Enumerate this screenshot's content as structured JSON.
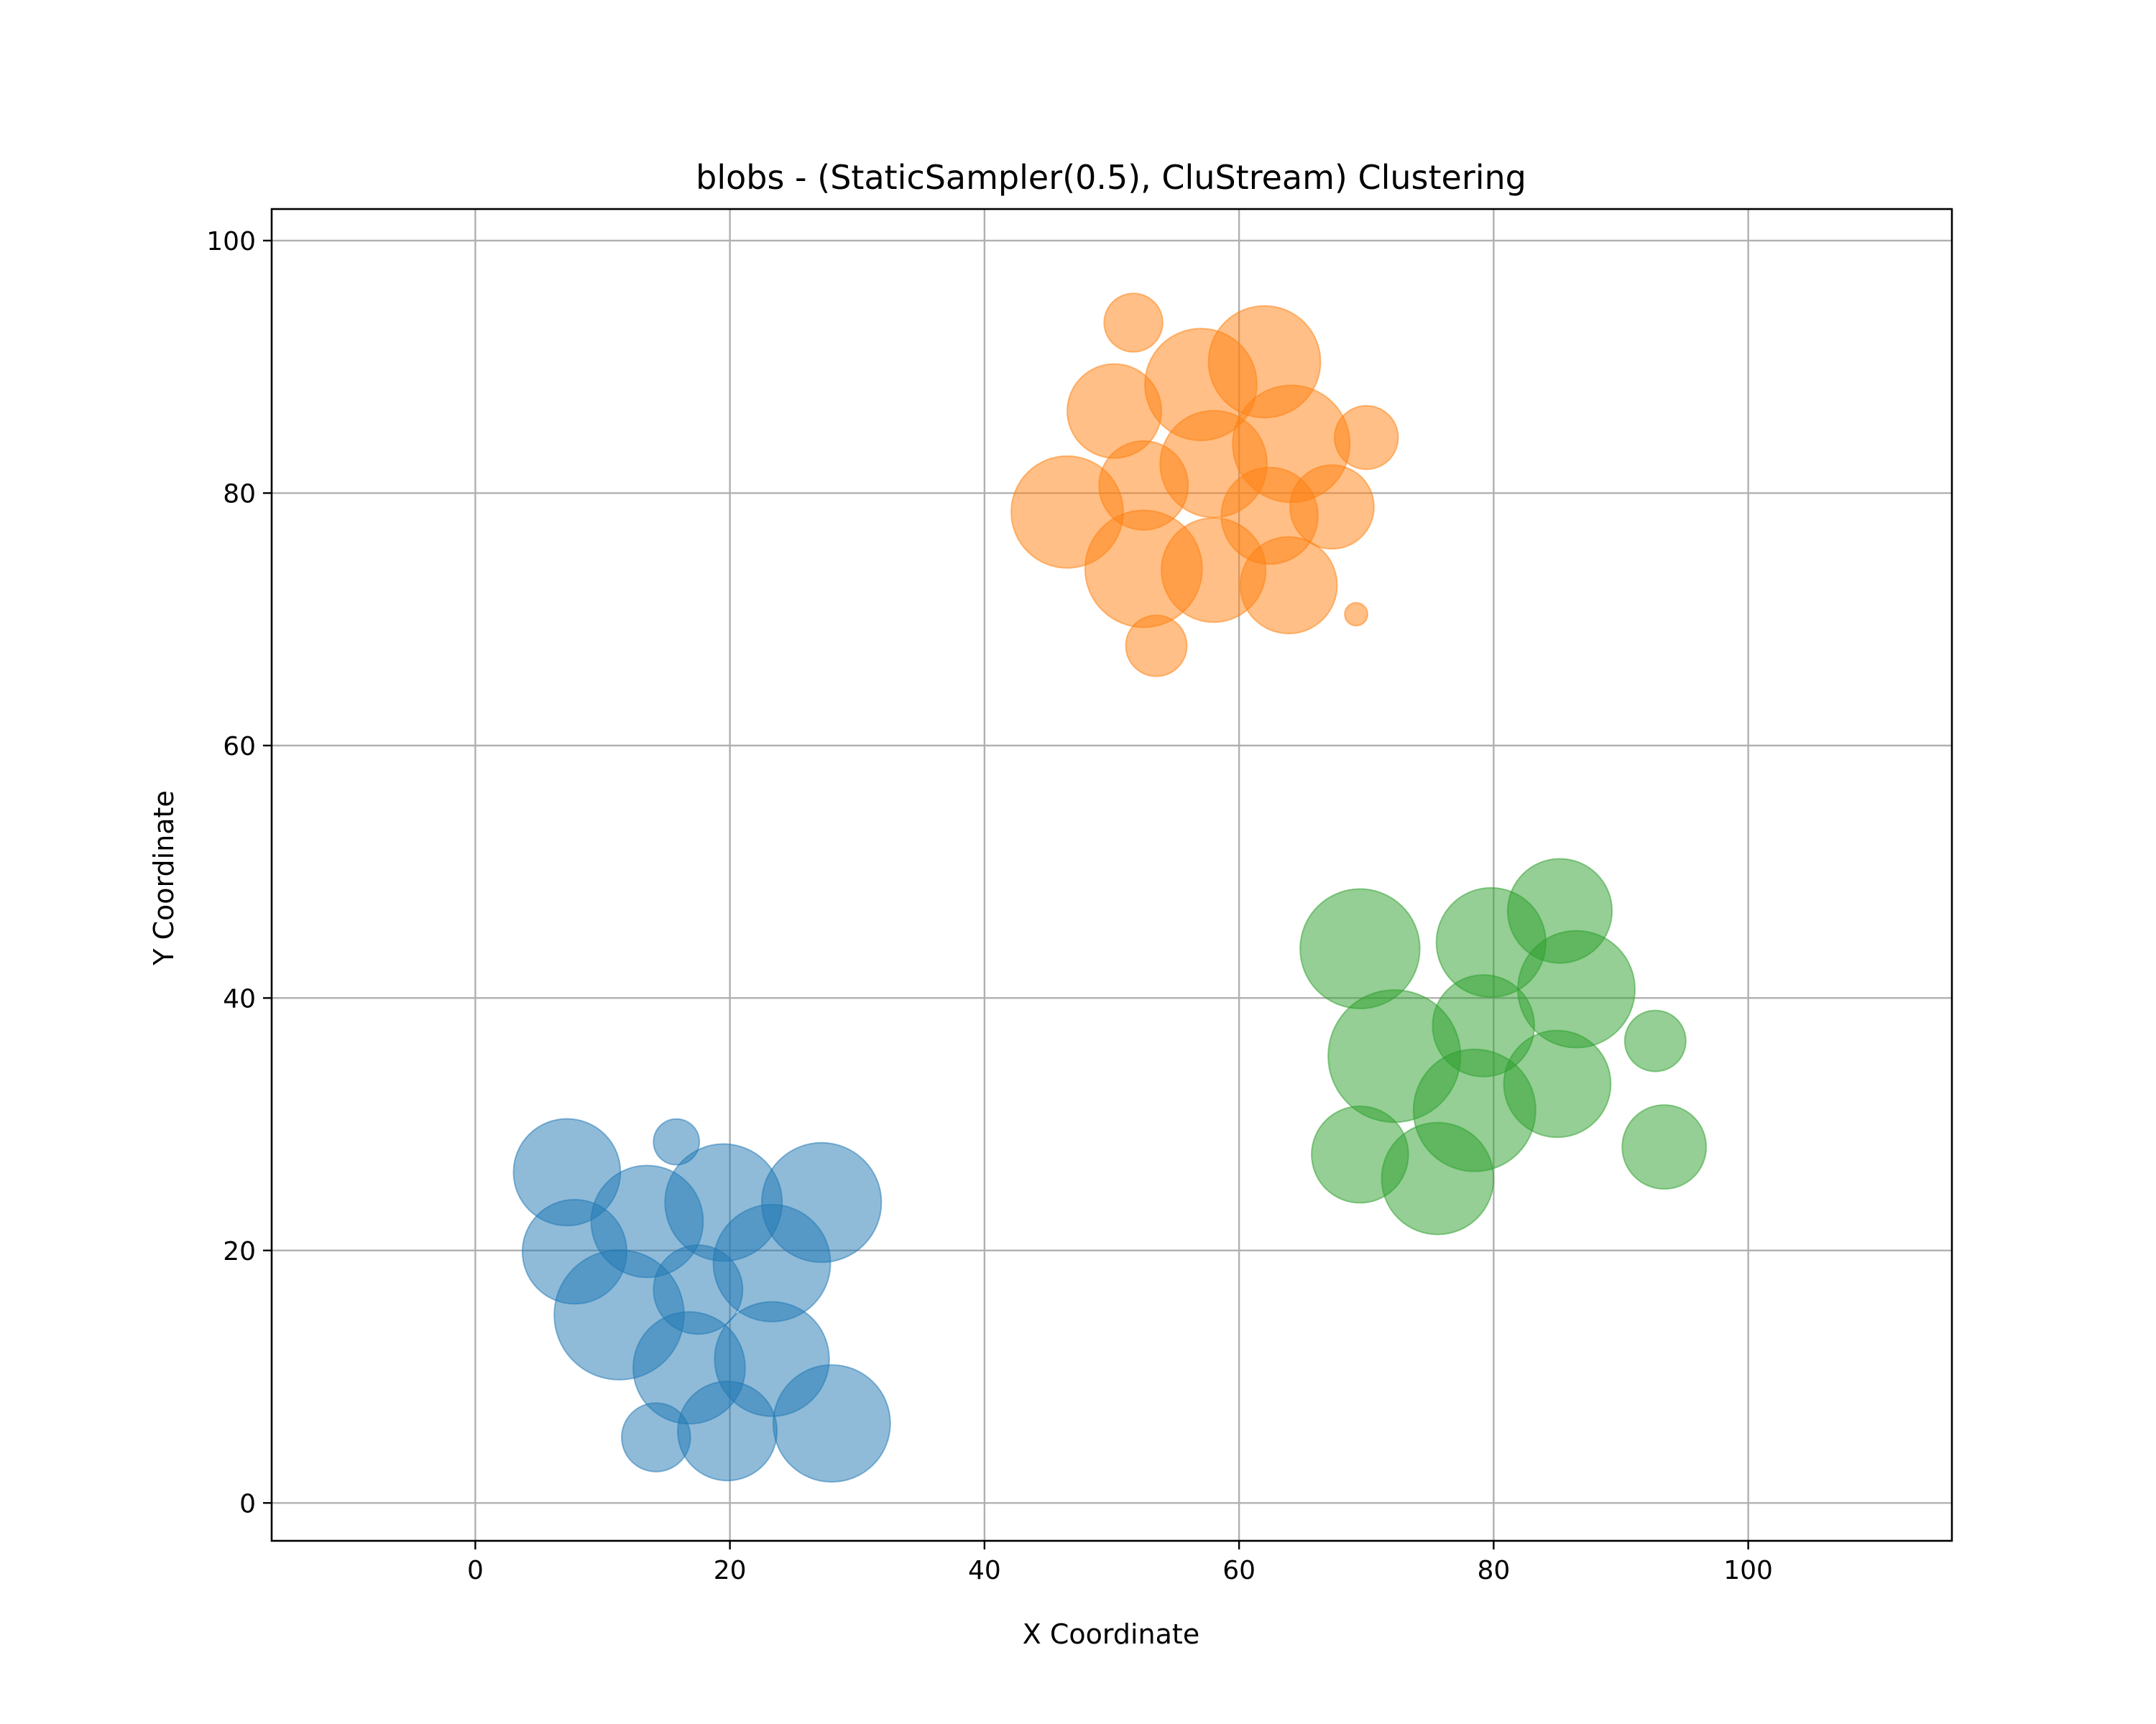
{
  "chart_data": {
    "type": "scatter",
    "title": "blobs - (StaticSampler(0.5), CluStream) Clustering",
    "xlabel": "X Coordinate",
    "ylabel": "Y Coordinate",
    "xlim": [
      -16,
      116
    ],
    "ylim": [
      -3,
      102.5
    ],
    "xticks": [
      0,
      20,
      40,
      60,
      80,
      100
    ],
    "yticks": [
      0,
      20,
      40,
      60,
      80,
      100
    ],
    "grid": true,
    "legend": "none",
    "radius_unit": "x data units",
    "series": [
      {
        "color": "#1f77b4",
        "points": [
          {
            "x": 7.2,
            "y": 26.2,
            "r": 4.2
          },
          {
            "x": 15.8,
            "y": 28.6,
            "r": 1.8
          },
          {
            "x": 7.8,
            "y": 19.9,
            "r": 4.1
          },
          {
            "x": 13.5,
            "y": 22.3,
            "r": 4.4
          },
          {
            "x": 19.5,
            "y": 23.8,
            "r": 4.6
          },
          {
            "x": 27.2,
            "y": 23.8,
            "r": 4.7
          },
          {
            "x": 17.5,
            "y": 16.9,
            "r": 3.5
          },
          {
            "x": 23.3,
            "y": 19.0,
            "r": 4.6
          },
          {
            "x": 11.3,
            "y": 14.9,
            "r": 5.1
          },
          {
            "x": 16.8,
            "y": 10.7,
            "r": 4.4
          },
          {
            "x": 23.3,
            "y": 11.4,
            "r": 4.5
          },
          {
            "x": 14.2,
            "y": 5.2,
            "r": 2.7
          },
          {
            "x": 19.8,
            "y": 5.7,
            "r": 3.9
          },
          {
            "x": 28.0,
            "y": 6.3,
            "r": 4.6
          }
        ]
      },
      {
        "color": "#ff7f0e",
        "points": [
          {
            "x": 51.7,
            "y": 93.5,
            "r": 2.3
          },
          {
            "x": 62.0,
            "y": 90.4,
            "r": 4.4
          },
          {
            "x": 57.0,
            "y": 88.6,
            "r": 4.4
          },
          {
            "x": 50.2,
            "y": 86.5,
            "r": 3.7
          },
          {
            "x": 64.1,
            "y": 83.9,
            "r": 4.6
          },
          {
            "x": 70.0,
            "y": 84.4,
            "r": 2.5
          },
          {
            "x": 58.0,
            "y": 82.3,
            "r": 4.2
          },
          {
            "x": 52.5,
            "y": 80.6,
            "r": 3.5
          },
          {
            "x": 46.5,
            "y": 78.5,
            "r": 4.4
          },
          {
            "x": 62.4,
            "y": 78.2,
            "r": 3.8
          },
          {
            "x": 67.3,
            "y": 78.9,
            "r": 3.3
          },
          {
            "x": 52.5,
            "y": 74.0,
            "r": 4.6
          },
          {
            "x": 58.0,
            "y": 73.9,
            "r": 4.1
          },
          {
            "x": 63.9,
            "y": 72.7,
            "r": 3.8
          },
          {
            "x": 53.5,
            "y": 67.9,
            "r": 2.4
          },
          {
            "x": 69.2,
            "y": 70.4,
            "r": 0.9
          }
        ]
      },
      {
        "color": "#2ca02c",
        "points": [
          {
            "x": 69.5,
            "y": 43.9,
            "r": 4.7
          },
          {
            "x": 79.8,
            "y": 44.4,
            "r": 4.3
          },
          {
            "x": 85.2,
            "y": 46.9,
            "r": 4.1
          },
          {
            "x": 86.5,
            "y": 40.7,
            "r": 4.6
          },
          {
            "x": 79.2,
            "y": 37.8,
            "r": 4.0
          },
          {
            "x": 72.2,
            "y": 35.4,
            "r": 5.2
          },
          {
            "x": 92.7,
            "y": 36.6,
            "r": 2.4
          },
          {
            "x": 85.0,
            "y": 33.2,
            "r": 4.2
          },
          {
            "x": 78.5,
            "y": 31.1,
            "r": 4.8
          },
          {
            "x": 69.5,
            "y": 27.6,
            "r": 3.8
          },
          {
            "x": 75.6,
            "y": 25.7,
            "r": 4.4
          },
          {
            "x": 93.4,
            "y": 28.2,
            "r": 3.3
          }
        ]
      }
    ]
  }
}
